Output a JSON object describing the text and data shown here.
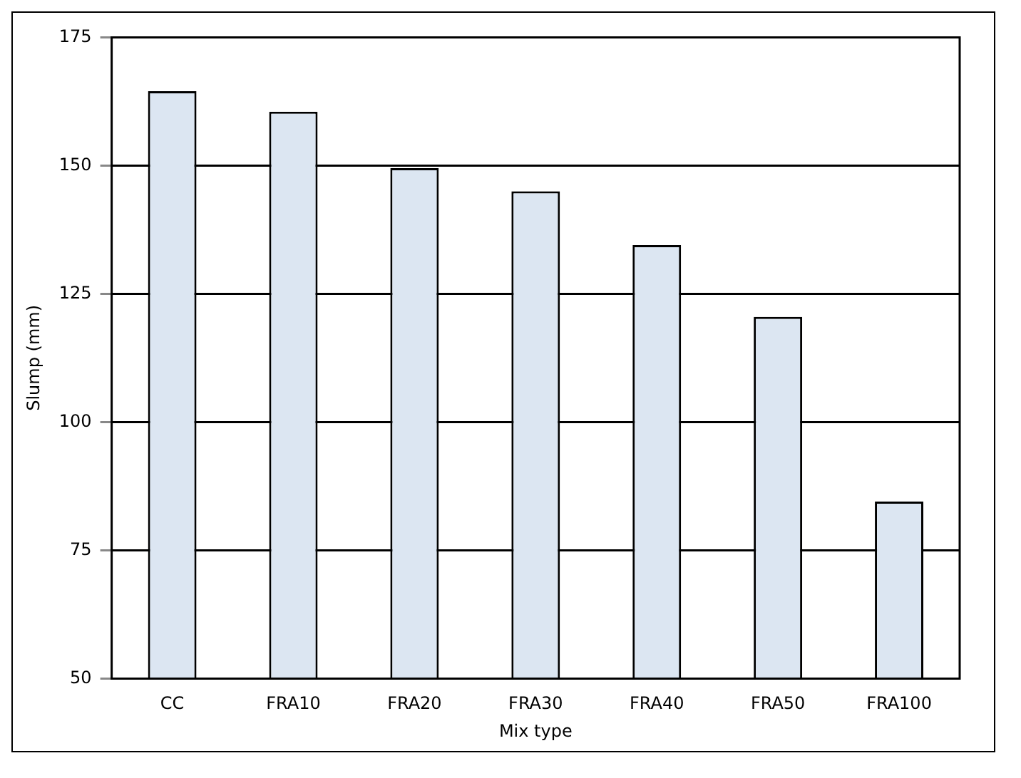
{
  "chart_data": {
    "type": "bar",
    "xlabel": "Mix type",
    "ylabel": "Slump (mm)",
    "categories": [
      "CC",
      "FRA10",
      "FRA20",
      "FRA30",
      "FRA40",
      "FRA50",
      "FRA100"
    ],
    "values": [
      164.5,
      160.5,
      149.5,
      145,
      134.5,
      120.5,
      84.5
    ],
    "color": "#dce6f2",
    "ylim": [
      50,
      175
    ],
    "yticks": [
      50,
      75,
      100,
      125,
      150,
      175
    ],
    "grid": "y"
  }
}
